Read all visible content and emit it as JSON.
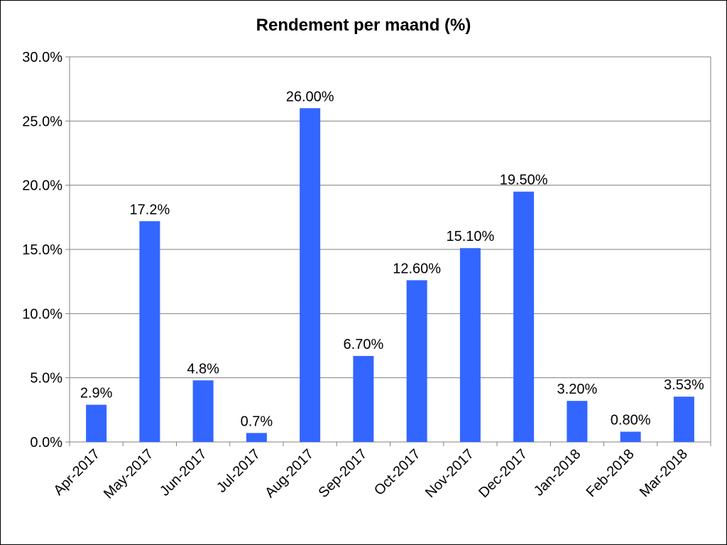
{
  "chart_data": {
    "type": "bar",
    "title": "Rendement per maand (%)",
    "xlabel": "",
    "ylabel": "",
    "categories": [
      "Apr-2017",
      "May-2017",
      "Jun-2017",
      "Jul-2017",
      "Aug-2017",
      "Sep-2017",
      "Oct-2017",
      "Nov-2017",
      "Dec-2017",
      "Jan-2018",
      "Feb-2018",
      "Mar-2018"
    ],
    "values": [
      2.9,
      17.2,
      4.8,
      0.7,
      26.0,
      6.7,
      12.6,
      15.1,
      19.5,
      3.2,
      0.8,
      3.53
    ],
    "data_labels": [
      "2.9%",
      "17.2%",
      "4.8%",
      "0.7%",
      "26.00%",
      "6.70%",
      "12.60%",
      "15.10%",
      "19.50%",
      "3.20%",
      "0.80%",
      "3.53%"
    ],
    "ylim": [
      0,
      30
    ],
    "y_ticks": [
      "0.0%",
      "5.0%",
      "10.0%",
      "15.0%",
      "20.0%",
      "25.0%",
      "30.0%"
    ],
    "grid": true,
    "legend": "none",
    "bar_color": "#3366FF"
  }
}
